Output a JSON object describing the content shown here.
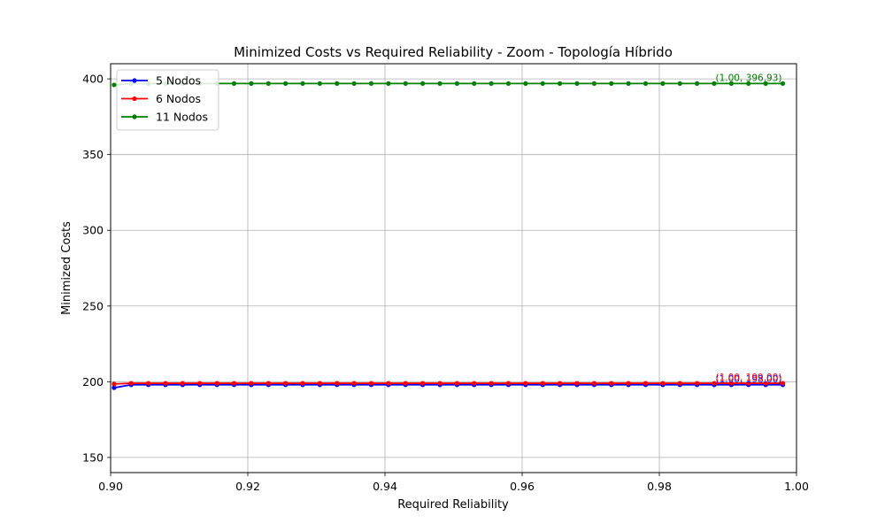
{
  "chart_data": {
    "type": "line",
    "title": "Minimized Costs vs Required Reliability - Zoom - Topología Híbrido",
    "xlabel": "Required Reliability",
    "ylabel": "Minimized Costs",
    "xlim": [
      0.9,
      1.0
    ],
    "ylim": [
      140,
      410
    ],
    "x_ticks": [
      "0.90",
      "0.92",
      "0.94",
      "0.96",
      "0.98",
      "1.00"
    ],
    "y_ticks": [
      "150",
      "200",
      "250",
      "300",
      "350",
      "400"
    ],
    "x_tick_values": [
      0.9,
      0.92,
      0.94,
      0.96,
      0.98,
      1.0
    ],
    "y_tick_values": [
      150,
      200,
      250,
      300,
      350,
      400
    ],
    "grid": true,
    "legend_position": "top-left",
    "x_start": 0.9005,
    "x_step": 0.0025,
    "n_points": 40,
    "series": [
      {
        "name": "5 Nodos",
        "color": "#0000ff",
        "values": [
          196,
          198,
          198,
          198,
          198,
          198,
          198,
          198,
          198,
          198,
          198,
          198,
          198,
          198,
          198,
          198,
          198,
          198,
          198,
          198,
          198,
          198,
          198,
          198,
          198,
          198,
          198,
          198,
          198,
          198,
          198,
          198,
          198,
          198,
          198,
          198,
          198,
          198,
          198,
          198
        ],
        "annotation": "(1.00, 198.00)"
      },
      {
        "name": "6 Nodos",
        "color": "#ff0000",
        "values": [
          198.5,
          199,
          199,
          199,
          199,
          199,
          199,
          199,
          199,
          199,
          199,
          199,
          199,
          199,
          199,
          199,
          199,
          199,
          199,
          199,
          199,
          199,
          199,
          199,
          199,
          199,
          199,
          199,
          199,
          199,
          199,
          199,
          199,
          199,
          199,
          199,
          199,
          199,
          199,
          199
        ],
        "annotation": "(1.00, 199.00)"
      },
      {
        "name": "11 Nodos",
        "color": "#008000",
        "values": [
          396,
          396.93,
          396.93,
          396.93,
          396.93,
          396.93,
          396.93,
          396.93,
          396.93,
          396.93,
          396.93,
          396.93,
          396.93,
          396.93,
          396.93,
          396.93,
          396.93,
          396.93,
          396.93,
          396.93,
          396.93,
          396.93,
          396.93,
          396.93,
          396.93,
          396.93,
          396.93,
          396.93,
          396.93,
          396.93,
          396.93,
          396.93,
          396.93,
          396.93,
          396.93,
          396.93,
          396.93,
          396.93,
          396.93,
          396.93
        ],
        "annotation": "(1.00, 396.93)"
      }
    ]
  }
}
